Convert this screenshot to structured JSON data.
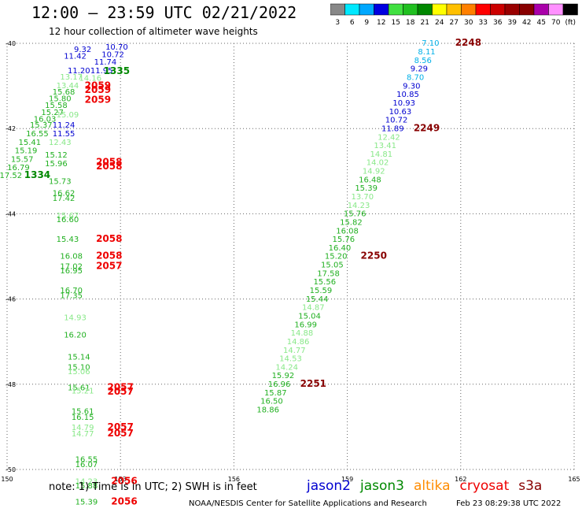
{
  "header": {
    "title": "12:00 — 23:59 UTC 02/21/2022",
    "subtitle": "12 hour collection of altimeter wave heights"
  },
  "color_scale": {
    "labels": [
      "3",
      "6",
      "9",
      "12",
      "15",
      "18",
      "21",
      "24",
      "27",
      "30",
      "33",
      "36",
      "39",
      "42",
      "45",
      "70",
      "(ft)"
    ],
    "colors": [
      "#888888",
      "#00e8ff",
      "#00a8ff",
      "#0000e0",
      "#40e040",
      "#20c020",
      "#008800",
      "#ffff00",
      "#ffc000",
      "#ff8000",
      "#ff0000",
      "#cc0000",
      "#990000",
      "#880000",
      "#aa00aa",
      "#ff90ff",
      "#000000"
    ]
  },
  "chart_data": {
    "type": "scatter",
    "title": "12:00 — 23:59 UTC 02/21/2022",
    "subtitle": "12 hour collection of altimeter wave heights",
    "xlim": [
      150,
      165
    ],
    "ylim": [
      -50,
      -40
    ],
    "xticks": [
      "150",
      "153",
      "156",
      "159",
      "162",
      "165"
    ],
    "yticks": [
      "-40",
      "-42",
      "-44",
      "-46",
      "-48",
      "-50"
    ],
    "grid": true,
    "points": [
      {
        "lon": 152.9,
        "lat": -40.15,
        "label": "10.70",
        "color": "#0000d0"
      },
      {
        "lon": 152.0,
        "lat": -40.2,
        "label": "9.32",
        "color": "#0000d0"
      },
      {
        "lon": 152.8,
        "lat": -40.32,
        "label": "10.72",
        "color": "#0000d0"
      },
      {
        "lon": 151.8,
        "lat": -40.36,
        "label": "11.42",
        "color": "#0000d0"
      },
      {
        "lon": 152.6,
        "lat": -40.5,
        "label": "11.74",
        "color": "#0000d0"
      },
      {
        "lon": 151.9,
        "lat": -40.7,
        "label": "11.20",
        "color": "#0000d0"
      },
      {
        "lon": 152.5,
        "lat": -40.7,
        "label": "11.95",
        "color": "#0000d0"
      },
      {
        "lon": 151.7,
        "lat": -40.85,
        "label": "13.17",
        "color": "#88e888"
      },
      {
        "lon": 152.2,
        "lat": -40.88,
        "label": "14.16",
        "color": "#88e888"
      },
      {
        "lon": 151.6,
        "lat": -41.05,
        "label": "13.44",
        "color": "#88e888"
      },
      {
        "lon": 151.5,
        "lat": -41.2,
        "label": "15.68",
        "color": "#20b020"
      },
      {
        "lon": 151.4,
        "lat": -41.36,
        "label": "15.80",
        "color": "#20b020"
      },
      {
        "lon": 151.3,
        "lat": -41.52,
        "label": "15.58",
        "color": "#20b020"
      },
      {
        "lon": 151.2,
        "lat": -41.68,
        "label": "15.27",
        "color": "#20b020"
      },
      {
        "lon": 151.6,
        "lat": -41.74,
        "label": "15.09",
        "color": "#88e888"
      },
      {
        "lon": 151.0,
        "lat": -41.84,
        "label": "16.03",
        "color": "#20b020"
      },
      {
        "lon": 150.9,
        "lat": -41.98,
        "label": "15.37",
        "color": "#20b020"
      },
      {
        "lon": 151.5,
        "lat": -41.98,
        "label": "11.24",
        "color": "#0000d0"
      },
      {
        "lon": 150.8,
        "lat": -42.18,
        "label": "16.55",
        "color": "#20b020"
      },
      {
        "lon": 151.5,
        "lat": -42.18,
        "label": "11.55",
        "color": "#0000d0"
      },
      {
        "lon": 150.6,
        "lat": -42.38,
        "label": "15.41",
        "color": "#20b020"
      },
      {
        "lon": 151.4,
        "lat": -42.38,
        "label": "12.43",
        "color": "#88e888"
      },
      {
        "lon": 150.5,
        "lat": -42.58,
        "label": "15.19",
        "color": "#20b020"
      },
      {
        "lon": 150.4,
        "lat": -42.78,
        "label": "15.57",
        "color": "#20b020"
      },
      {
        "lon": 151.3,
        "lat": -42.68,
        "label": "15.12",
        "color": "#20b020"
      },
      {
        "lon": 150.3,
        "lat": -42.98,
        "label": "16.79",
        "color": "#20b020"
      },
      {
        "lon": 151.3,
        "lat": -42.88,
        "label": "15.96",
        "color": "#20b020"
      },
      {
        "lon": 150.1,
        "lat": -43.16,
        "label": "17.52",
        "color": "#20b020"
      },
      {
        "lon": 151.4,
        "lat": -43.3,
        "label": "15.73",
        "color": "#20b020"
      },
      {
        "lon": 151.5,
        "lat": -43.58,
        "label": "16.62",
        "color": "#20b020"
      },
      {
        "lon": 151.5,
        "lat": -43.7,
        "label": "17.42",
        "color": "#20b020"
      },
      {
        "lon": 151.6,
        "lat": -44.1,
        "label": "15.67",
        "color": "#88e888"
      },
      {
        "lon": 151.6,
        "lat": -44.2,
        "label": "16.60",
        "color": "#20b020"
      },
      {
        "lon": 151.6,
        "lat": -44.66,
        "label": "15.43",
        "color": "#20b020"
      },
      {
        "lon": 151.7,
        "lat": -45.06,
        "label": "16.08",
        "color": "#20b020"
      },
      {
        "lon": 151.7,
        "lat": -45.3,
        "label": "17.02",
        "color": "#20b020"
      },
      {
        "lon": 151.7,
        "lat": -45.4,
        "label": "16.95",
        "color": "#20b020"
      },
      {
        "lon": 151.7,
        "lat": -45.86,
        "label": "16.70",
        "color": "#20b020"
      },
      {
        "lon": 151.7,
        "lat": -45.98,
        "label": "17.35",
        "color": "#20b020"
      },
      {
        "lon": 151.8,
        "lat": -46.5,
        "label": "14.93",
        "color": "#88e888"
      },
      {
        "lon": 151.8,
        "lat": -46.9,
        "label": "16.20",
        "color": "#20b020"
      },
      {
        "lon": 151.9,
        "lat": -47.42,
        "label": "15.14",
        "color": "#20b020"
      },
      {
        "lon": 151.9,
        "lat": -47.66,
        "label": "15.10",
        "color": "#20b020"
      },
      {
        "lon": 151.9,
        "lat": -47.76,
        "label": "15.06",
        "color": "#88e888"
      },
      {
        "lon": 151.9,
        "lat": -48.14,
        "label": "15.61",
        "color": "#20b020"
      },
      {
        "lon": 152.0,
        "lat": -48.22,
        "label": "15.21",
        "color": "#88e888"
      },
      {
        "lon": 152.0,
        "lat": -48.7,
        "label": "15.61",
        "color": "#20b020"
      },
      {
        "lon": 152.0,
        "lat": -48.84,
        "label": "16.15",
        "color": "#20b020"
      },
      {
        "lon": 152.0,
        "lat": -49.08,
        "label": "14.79",
        "color": "#88e888"
      },
      {
        "lon": 152.0,
        "lat": -49.22,
        "label": "14.77",
        "color": "#88e888"
      },
      {
        "lon": 152.1,
        "lat": -49.82,
        "label": "16.55",
        "color": "#20b020"
      },
      {
        "lon": 152.1,
        "lat": -49.94,
        "label": "16.07",
        "color": "#20b020"
      },
      {
        "lon": 152.1,
        "lat": -50.34,
        "label": "14.23",
        "color": "#88e888"
      },
      {
        "lon": 152.1,
        "lat": -50.44,
        "label": "15.88",
        "color": "#20b020"
      },
      {
        "lon": 152.1,
        "lat": -50.82,
        "label": "15.39",
        "color": "#20b020"
      },
      {
        "lon": 161.2,
        "lat": -40.06,
        "label": "7.10",
        "color": "#00b0e8"
      },
      {
        "lon": 161.1,
        "lat": -40.26,
        "label": "8.11",
        "color": "#00b0e8"
      },
      {
        "lon": 161.0,
        "lat": -40.46,
        "label": "8.56",
        "color": "#00b0e8"
      },
      {
        "lon": 160.9,
        "lat": -40.66,
        "label": "9.29",
        "color": "#0000d0"
      },
      {
        "lon": 160.8,
        "lat": -40.86,
        "label": "8.70",
        "color": "#00b0e8"
      },
      {
        "lon": 160.7,
        "lat": -41.06,
        "label": "9.30",
        "color": "#0000d0"
      },
      {
        "lon": 160.6,
        "lat": -41.26,
        "label": "10.85",
        "color": "#0000d0"
      },
      {
        "lon": 160.5,
        "lat": -41.46,
        "label": "10.93",
        "color": "#0000d0"
      },
      {
        "lon": 160.4,
        "lat": -41.66,
        "label": "10.63",
        "color": "#0000d0"
      },
      {
        "lon": 160.3,
        "lat": -41.86,
        "label": "10.72",
        "color": "#0000d0"
      },
      {
        "lon": 160.2,
        "lat": -42.06,
        "label": "11.89",
        "color": "#0000d0"
      },
      {
        "lon": 160.1,
        "lat": -42.26,
        "label": "12.42",
        "color": "#88e888"
      },
      {
        "lon": 160.0,
        "lat": -42.46,
        "label": "13.41",
        "color": "#88e888"
      },
      {
        "lon": 159.9,
        "lat": -42.66,
        "label": "14.81",
        "color": "#88e888"
      },
      {
        "lon": 159.8,
        "lat": -42.86,
        "label": "14.02",
        "color": "#88e888"
      },
      {
        "lon": 159.7,
        "lat": -43.06,
        "label": "14.92",
        "color": "#88e888"
      },
      {
        "lon": 159.6,
        "lat": -43.26,
        "label": "16.48",
        "color": "#20b020"
      },
      {
        "lon": 159.5,
        "lat": -43.46,
        "label": "15.39",
        "color": "#20b020"
      },
      {
        "lon": 159.4,
        "lat": -43.66,
        "label": "13.70",
        "color": "#88e888"
      },
      {
        "lon": 159.3,
        "lat": -43.86,
        "label": "14.23",
        "color": "#88e888"
      },
      {
        "lon": 159.2,
        "lat": -44.06,
        "label": "15.76",
        "color": "#20b020"
      },
      {
        "lon": 159.1,
        "lat": -44.26,
        "label": "15.82",
        "color": "#20b020"
      },
      {
        "lon": 159.0,
        "lat": -44.46,
        "label": "16.08",
        "color": "#20b020"
      },
      {
        "lon": 158.9,
        "lat": -44.66,
        "label": "15.76",
        "color": "#20b020"
      },
      {
        "lon": 158.8,
        "lat": -44.86,
        "label": "16.40",
        "color": "#20b020"
      },
      {
        "lon": 158.7,
        "lat": -45.06,
        "label": "15.20",
        "color": "#20b020"
      },
      {
        "lon": 158.6,
        "lat": -45.26,
        "label": "15.05",
        "color": "#20b020"
      },
      {
        "lon": 158.5,
        "lat": -45.46,
        "label": "17.58",
        "color": "#20b020"
      },
      {
        "lon": 158.4,
        "lat": -45.66,
        "label": "15.56",
        "color": "#20b020"
      },
      {
        "lon": 158.3,
        "lat": -45.86,
        "label": "15.59",
        "color": "#20b020"
      },
      {
        "lon": 158.2,
        "lat": -46.06,
        "label": "15.44",
        "color": "#20b020"
      },
      {
        "lon": 158.1,
        "lat": -46.26,
        "label": "14.87",
        "color": "#88e888"
      },
      {
        "lon": 158.0,
        "lat": -46.46,
        "label": "15.04",
        "color": "#20b020"
      },
      {
        "lon": 157.9,
        "lat": -46.66,
        "label": "16.99",
        "color": "#20b020"
      },
      {
        "lon": 157.8,
        "lat": -46.86,
        "label": "14.88",
        "color": "#88e888"
      },
      {
        "lon": 157.7,
        "lat": -47.06,
        "label": "14.86",
        "color": "#88e888"
      },
      {
        "lon": 157.6,
        "lat": -47.26,
        "label": "14.77",
        "color": "#88e888"
      },
      {
        "lon": 157.5,
        "lat": -47.46,
        "label": "14.53",
        "color": "#88e888"
      },
      {
        "lon": 157.4,
        "lat": -47.66,
        "label": "14.24",
        "color": "#88e888"
      },
      {
        "lon": 157.3,
        "lat": -47.86,
        "label": "15.92",
        "color": "#20b020"
      },
      {
        "lon": 157.2,
        "lat": -48.06,
        "label": "16.96",
        "color": "#20b020"
      },
      {
        "lon": 157.1,
        "lat": -48.26,
        "label": "15.87",
        "color": "#20b020"
      },
      {
        "lon": 157.0,
        "lat": -48.46,
        "label": "16.50",
        "color": "#20b020"
      },
      {
        "lon": 156.9,
        "lat": -48.66,
        "label": "18.86",
        "color": "#20b020"
      }
    ],
    "time_labels": [
      {
        "lon": 152.9,
        "lat": -40.72,
        "label": "1335",
        "color": "#008800"
      },
      {
        "lon": 152.4,
        "lat": -41.06,
        "label": "2059",
        "color": "#ee0000"
      },
      {
        "lon": 152.4,
        "lat": -41.16,
        "label": "2059",
        "color": "#ee0000"
      },
      {
        "lon": 152.4,
        "lat": -41.4,
        "label": "2059",
        "color": "#ee0000"
      },
      {
        "lon": 150.8,
        "lat": -43.16,
        "label": "1334",
        "color": "#008800"
      },
      {
        "lon": 152.7,
        "lat": -42.86,
        "label": "2058",
        "color": "#ee0000"
      },
      {
        "lon": 152.7,
        "lat": -42.96,
        "label": "2058",
        "color": "#ee0000"
      },
      {
        "lon": 152.7,
        "lat": -44.66,
        "label": "2058",
        "color": "#ee0000"
      },
      {
        "lon": 152.7,
        "lat": -45.06,
        "label": "2058",
        "color": "#ee0000"
      },
      {
        "lon": 152.7,
        "lat": -45.3,
        "label": "2057",
        "color": "#ee0000"
      },
      {
        "lon": 153.0,
        "lat": -48.14,
        "label": "2057",
        "color": "#ee0000"
      },
      {
        "lon": 153.0,
        "lat": -48.24,
        "label": "2057",
        "color": "#ee0000"
      },
      {
        "lon": 153.0,
        "lat": -49.08,
        "label": "2057",
        "color": "#ee0000"
      },
      {
        "lon": 153.0,
        "lat": -49.22,
        "label": "2057",
        "color": "#ee0000"
      },
      {
        "lon": 153.1,
        "lat": -50.34,
        "label": "2056",
        "color": "#ee0000"
      },
      {
        "lon": 153.1,
        "lat": -50.82,
        "label": "2056",
        "color": "#ee0000"
      },
      {
        "lon": 162.2,
        "lat": -40.06,
        "label": "2248",
        "color": "#880000"
      },
      {
        "lon": 161.1,
        "lat": -42.06,
        "label": "2249",
        "color": "#880000"
      },
      {
        "lon": 159.7,
        "lat": -45.06,
        "label": "2250",
        "color": "#880000"
      },
      {
        "lon": 158.1,
        "lat": -48.06,
        "label": "2251",
        "color": "#880000"
      }
    ]
  },
  "notes": {
    "text": "note: 1) Time is in UTC; 2) SWH is in feet"
  },
  "legend": {
    "satellites": [
      {
        "name": "jason2",
        "color": "#0000d0"
      },
      {
        "name": "jason3",
        "color": "#008800"
      },
      {
        "name": "altika",
        "color": "#ff8c00"
      },
      {
        "name": "cryosat",
        "color": "#ee0000"
      },
      {
        "name": "s3a",
        "color": "#880000"
      }
    ]
  },
  "footer": {
    "left": "NOAA/NESDIS Center for Satellite Applications and Research",
    "right": "Feb 23 08:29:38 UTC 2022"
  }
}
